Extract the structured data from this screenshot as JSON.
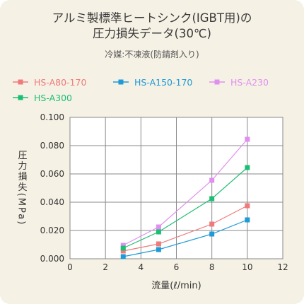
{
  "title_line1": "アルミ製標準ヒートシンク(IGBT用)の",
  "title_line2": "圧力損失データ(30℃)",
  "subtitle": "冷媒:不凍液(防錆剤入り)",
  "chart_data": {
    "type": "line",
    "xlabel": "流量(ℓ/min)",
    "ylabel": "圧力損失(MPa)",
    "xlim": [
      0,
      12
    ],
    "ylim": [
      0,
      0.1
    ],
    "xticks": [
      "0",
      "2",
      "4",
      "6",
      "8",
      "10",
      "12"
    ],
    "yticks": [
      "0.000",
      "0.020",
      "0.040",
      "0.060",
      "0.080",
      "0.100"
    ],
    "grid": true,
    "legend_position": "top",
    "x": [
      3,
      5,
      8,
      10
    ],
    "series": [
      {
        "name": "HS-A80-170",
        "color": "#f07a7a",
        "values": [
          0.0055,
          0.0105,
          0.0245,
          0.0375
        ]
      },
      {
        "name": "HS-A150-170",
        "color": "#1e9ad6",
        "values": [
          0.0015,
          0.0065,
          0.0175,
          0.0275
        ]
      },
      {
        "name": "HS-A230",
        "color": "#e08ff0",
        "values": [
          0.0095,
          0.0225,
          0.0555,
          0.0845
        ]
      },
      {
        "name": "HS-A300",
        "color": "#1bbf74",
        "values": [
          0.0075,
          0.019,
          0.0425,
          0.0645
        ]
      }
    ]
  }
}
